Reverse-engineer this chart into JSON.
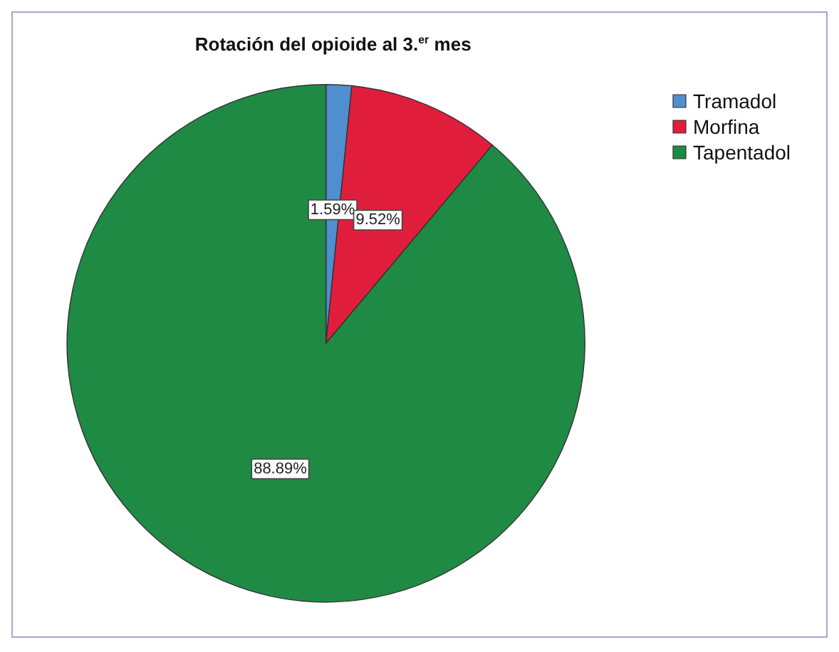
{
  "chart_data": {
    "type": "pie",
    "title": "Rotación del opioide al 3.$^{er}$ mes",
    "categories": [
      "Tramadol",
      "Morfina",
      "Tapentadol"
    ],
    "values": [
      1.59,
      9.52,
      88.89
    ],
    "colors": [
      "#4f8fd0",
      "#e01e3c",
      "#1f8a44"
    ],
    "value_labels": [
      "1.59%",
      "9.52%",
      "88.89%"
    ],
    "legend": "top right"
  }
}
